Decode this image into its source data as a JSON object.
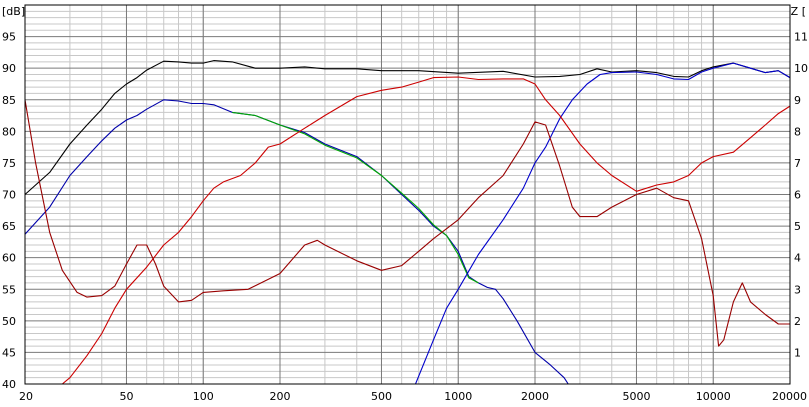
{
  "chart_data": {
    "type": "line",
    "x_scale": "log",
    "xlim": [
      20,
      20000
    ],
    "ylim_left": [
      40,
      100
    ],
    "ylim_right": [
      0,
      12
    ],
    "left_unit_label": "[dB]",
    "right_unit_label": "Z [",
    "x_ticks": [
      {
        "value": 20,
        "label": "20"
      },
      {
        "value": 50,
        "label": "50"
      },
      {
        "value": 100,
        "label": "100"
      },
      {
        "value": 200,
        "label": "200"
      },
      {
        "value": 500,
        "label": "500"
      },
      {
        "value": 1000,
        "label": "1000"
      },
      {
        "value": 2000,
        "label": "2000"
      },
      {
        "value": 5000,
        "label": "5000"
      },
      {
        "value": 10000,
        "label": "10000"
      },
      {
        "value": 20000,
        "label": "20000"
      }
    ],
    "y_ticks_left": [
      {
        "value": 95,
        "label": "95"
      },
      {
        "value": 90,
        "label": "90"
      },
      {
        "value": 85,
        "label": "85"
      },
      {
        "value": 80,
        "label": "80"
      },
      {
        "value": 75,
        "label": "75"
      },
      {
        "value": 70,
        "label": "70"
      },
      {
        "value": 65,
        "label": "65"
      },
      {
        "value": 60,
        "label": "60"
      },
      {
        "value": 55,
        "label": "55"
      },
      {
        "value": 50,
        "label": "50"
      },
      {
        "value": 45,
        "label": "45"
      },
      {
        "value": 40,
        "label": "40"
      }
    ],
    "y_ticks_right": [
      {
        "value": 11,
        "label": "11"
      },
      {
        "value": 10,
        "label": "10"
      },
      {
        "value": 9,
        "label": "9"
      },
      {
        "value": 8,
        "label": "8"
      },
      {
        "value": 7,
        "label": "7"
      },
      {
        "value": 6,
        "label": "6"
      },
      {
        "value": 5,
        "label": "5"
      },
      {
        "value": 4,
        "label": "4"
      },
      {
        "value": 3,
        "label": "3"
      },
      {
        "value": 2,
        "label": "2"
      },
      {
        "value": 1,
        "label": "1"
      }
    ],
    "grid": true,
    "series": [
      {
        "color": "#000000",
        "axis": "left",
        "points": [
          [
            20,
            70
          ],
          [
            25,
            73.5
          ],
          [
            30,
            78
          ],
          [
            35,
            81
          ],
          [
            40,
            83.5
          ],
          [
            45,
            86
          ],
          [
            50,
            87.5
          ],
          [
            55,
            88.5
          ],
          [
            60,
            89.7
          ],
          [
            70,
            91.1
          ],
          [
            80,
            91
          ],
          [
            90,
            90.8
          ],
          [
            100,
            90.8
          ],
          [
            110,
            91.2
          ],
          [
            130,
            91
          ],
          [
            160,
            90
          ],
          [
            200,
            90
          ],
          [
            250,
            90.2
          ],
          [
            300,
            89.9
          ],
          [
            400,
            89.9
          ],
          [
            500,
            89.6
          ],
          [
            700,
            89.6
          ],
          [
            1000,
            89.2
          ],
          [
            1500,
            89.5
          ],
          [
            2000,
            88.6
          ],
          [
            2500,
            88.7
          ],
          [
            3000,
            89
          ],
          [
            3500,
            89.9
          ],
          [
            4000,
            89.4
          ],
          [
            5000,
            89.6
          ],
          [
            6000,
            89.3
          ],
          [
            7000,
            88.7
          ],
          [
            8000,
            88.6
          ],
          [
            9000,
            89.6
          ],
          [
            10000,
            90.2
          ],
          [
            12000,
            90.8
          ],
          [
            14000,
            90
          ],
          [
            16000,
            89.3
          ],
          [
            18000,
            89.6
          ],
          [
            20000,
            88.5
          ]
        ]
      },
      {
        "color": "#0000aa",
        "axis": "left",
        "points": [
          [
            20,
            63.7
          ],
          [
            25,
            68
          ],
          [
            30,
            73
          ],
          [
            35,
            76
          ],
          [
            40,
            78.5
          ],
          [
            45,
            80.5
          ],
          [
            50,
            81.8
          ],
          [
            55,
            82.5
          ],
          [
            60,
            83.5
          ],
          [
            70,
            85
          ],
          [
            80,
            84.8
          ],
          [
            90,
            84.4
          ],
          [
            100,
            84.4
          ],
          [
            110,
            84.2
          ],
          [
            130,
            83
          ],
          [
            160,
            82.5
          ],
          [
            200,
            81
          ],
          [
            250,
            79.8
          ],
          [
            300,
            78
          ],
          [
            400,
            76
          ],
          [
            500,
            73
          ],
          [
            600,
            70
          ],
          [
            700,
            67.5
          ],
          [
            800,
            65
          ],
          [
            900,
            63.5
          ],
          [
            1000,
            61
          ],
          [
            1100,
            57
          ],
          [
            1200,
            56
          ],
          [
            1300,
            55.3
          ],
          [
            1400,
            55
          ],
          [
            1500,
            53.5
          ],
          [
            1700,
            50
          ],
          [
            2000,
            45
          ],
          [
            2300,
            43
          ],
          [
            2600,
            41
          ],
          [
            2700,
            40
          ]
        ]
      },
      {
        "color": "#00aa00",
        "axis": "left",
        "points": [
          [
            130,
            83
          ],
          [
            160,
            82.5
          ],
          [
            200,
            81
          ],
          [
            250,
            79.6
          ],
          [
            300,
            77.8
          ],
          [
            400,
            75.8
          ],
          [
            500,
            73
          ],
          [
            600,
            70.2
          ],
          [
            700,
            67.8
          ],
          [
            800,
            65.2
          ],
          [
            900,
            63.5
          ],
          [
            1000,
            60.5
          ],
          [
            1100,
            56.8
          ],
          [
            1200,
            56
          ]
        ]
      },
      {
        "color": "#0000cc",
        "axis": "left",
        "points": [
          [
            680,
            40
          ],
          [
            800,
            47
          ],
          [
            900,
            52
          ],
          [
            1000,
            55
          ],
          [
            1200,
            60.5
          ],
          [
            1500,
            66
          ],
          [
            1800,
            71
          ],
          [
            2000,
            75
          ],
          [
            2200,
            77.5
          ],
          [
            2500,
            82
          ],
          [
            2800,
            85
          ],
          [
            3200,
            87.5
          ],
          [
            3600,
            89
          ],
          [
            4000,
            89.3
          ],
          [
            5000,
            89.4
          ],
          [
            6000,
            89
          ],
          [
            7000,
            88.3
          ],
          [
            8000,
            88.2
          ],
          [
            9000,
            89.4
          ],
          [
            10000,
            90
          ],
          [
            12000,
            90.8
          ],
          [
            14000,
            90
          ],
          [
            16000,
            89.3
          ],
          [
            18000,
            89.6
          ],
          [
            20000,
            88.5
          ]
        ]
      },
      {
        "color": "#cc0000",
        "axis": "left",
        "points": [
          [
            20,
            40
          ],
          [
            28,
            40
          ],
          [
            30,
            41
          ],
          [
            35,
            44.5
          ],
          [
            40,
            48
          ],
          [
            45,
            52
          ],
          [
            50,
            55
          ],
          [
            60,
            58.5
          ],
          [
            70,
            62
          ],
          [
            80,
            64
          ],
          [
            90,
            66.5
          ],
          [
            100,
            69
          ],
          [
            110,
            71
          ],
          [
            120,
            72
          ],
          [
            140,
            73
          ],
          [
            160,
            75
          ],
          [
            180,
            77.5
          ],
          [
            200,
            78
          ],
          [
            250,
            80.5
          ],
          [
            300,
            82.5
          ],
          [
            400,
            85.5
          ],
          [
            500,
            86.5
          ],
          [
            600,
            87
          ],
          [
            700,
            87.8
          ],
          [
            800,
            88.5
          ],
          [
            1000,
            88.6
          ],
          [
            1200,
            88.2
          ],
          [
            1500,
            88.3
          ],
          [
            1800,
            88.3
          ],
          [
            2000,
            87.5
          ],
          [
            2200,
            85
          ],
          [
            2500,
            82.5
          ],
          [
            3000,
            78
          ],
          [
            3500,
            75
          ],
          [
            4000,
            73
          ],
          [
            5000,
            70.5
          ],
          [
            6000,
            71.5
          ],
          [
            7000,
            72
          ],
          [
            8000,
            73
          ],
          [
            9000,
            75
          ],
          [
            10000,
            76
          ],
          [
            12000,
            76.7
          ],
          [
            14000,
            79
          ],
          [
            16000,
            81
          ],
          [
            18000,
            82.8
          ],
          [
            20000,
            84
          ]
        ]
      },
      {
        "color": "#990000",
        "axis": "right",
        "points": [
          [
            20,
            9
          ],
          [
            22,
            7
          ],
          [
            25,
            4.8
          ],
          [
            28,
            3.6
          ],
          [
            32,
            2.9
          ],
          [
            35,
            2.75
          ],
          [
            40,
            2.8
          ],
          [
            45,
            3.1
          ],
          [
            50,
            3.8
          ],
          [
            55,
            4.4
          ],
          [
            60,
            4.4
          ],
          [
            65,
            3.8
          ],
          [
            70,
            3.1
          ],
          [
            80,
            2.6
          ],
          [
            90,
            2.65
          ],
          [
            100,
            2.9
          ],
          [
            120,
            2.95
          ],
          [
            150,
            3.0
          ],
          [
            200,
            3.5
          ],
          [
            250,
            4.4
          ],
          [
            280,
            4.55
          ],
          [
            300,
            4.4
          ],
          [
            400,
            3.9
          ],
          [
            500,
            3.6
          ],
          [
            600,
            3.75
          ],
          [
            700,
            4.2
          ],
          [
            800,
            4.6
          ],
          [
            1000,
            5.2
          ],
          [
            1200,
            5.9
          ],
          [
            1500,
            6.6
          ],
          [
            1800,
            7.6
          ],
          [
            2000,
            8.3
          ],
          [
            2200,
            8.2
          ],
          [
            2500,
            6.9
          ],
          [
            2800,
            5.6
          ],
          [
            3000,
            5.3
          ],
          [
            3500,
            5.3
          ],
          [
            4000,
            5.6
          ],
          [
            5000,
            6.0
          ],
          [
            6000,
            6.2
          ],
          [
            7000,
            5.9
          ],
          [
            8000,
            5.8
          ],
          [
            9000,
            4.6
          ],
          [
            10000,
            2.8
          ],
          [
            10500,
            1.2
          ],
          [
            11000,
            1.4
          ],
          [
            12000,
            2.6
          ],
          [
            13000,
            3.2
          ],
          [
            14000,
            2.6
          ],
          [
            16000,
            2.2
          ],
          [
            18000,
            1.9
          ],
          [
            20000,
            1.9
          ]
        ]
      }
    ]
  }
}
